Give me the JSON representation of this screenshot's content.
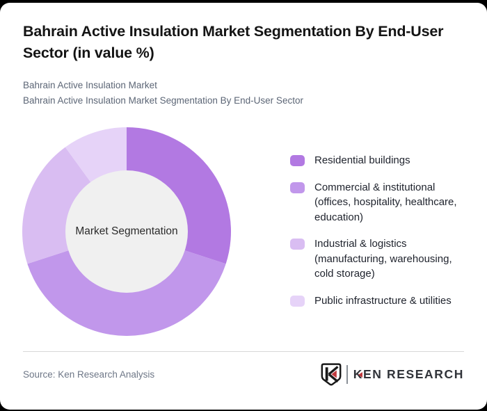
{
  "page": {
    "background_color": "#000000",
    "card_color": "#ffffff"
  },
  "header": {
    "title": "Bahrain Active Insulation Market Segmentation By End-User Sector (in value %)",
    "subtitle_line1": "Bahrain Active Insulation Market",
    "subtitle_line2": "Bahrain Active Insulation Market Segmentation By End-User Sector"
  },
  "chart_data": {
    "type": "pie",
    "donut": true,
    "title": "Bahrain Active Insulation Market Segmentation By End-User Sector (in value %)",
    "center_label": "Market Segmentation",
    "hole_color": "#f0f0f0",
    "start": "top",
    "direction": "clockwise",
    "legend_position": "right",
    "values_are_percent": true,
    "segments": [
      {
        "label": "Residential buildings",
        "value": 30,
        "color": "#b279e2"
      },
      {
        "label": "Commercial & institutional\n(offices, hospitality, healthcare,\neducation)",
        "value": 40,
        "color": "#c197eb"
      },
      {
        "label": "Industrial & logistics\n(manufacturing, warehousing,\ncold storage)",
        "value": 20,
        "color": "#d9bdf2"
      },
      {
        "label": "Public infrastructure & utilities",
        "value": 10,
        "color": "#e6d3f8"
      }
    ]
  },
  "footer": {
    "source_text": "Source: Ken Research Analysis",
    "brand_text": "KEN RESEARCH",
    "brand_accent_color": "#c0393d",
    "brand_mark": "K-shield logo"
  }
}
